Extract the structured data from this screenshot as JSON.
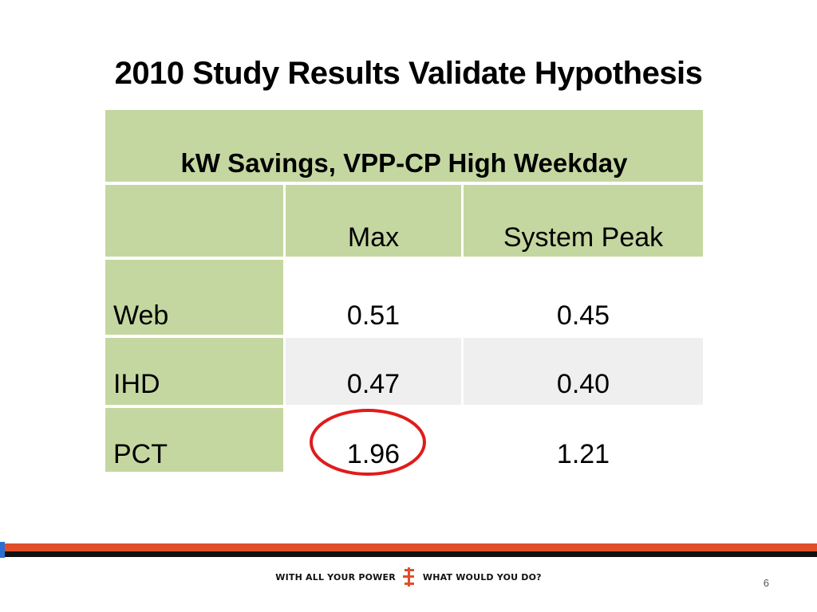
{
  "slide": {
    "title": "2010 Study Results Validate Hypothesis",
    "page_number": "6"
  },
  "table": {
    "title": "kW Savings, VPP-CP High Weekday",
    "columns": [
      "",
      "Max",
      "System Peak"
    ],
    "rows": [
      {
        "label": "Web",
        "max": "0.51",
        "system_peak": "0.45"
      },
      {
        "label": "IHD",
        "max": "0.47",
        "system_peak": "0.40"
      },
      {
        "label": "PCT",
        "max": "1.96",
        "system_peak": "1.21"
      }
    ],
    "highlighted_cell": "PCT / Max"
  },
  "footer": {
    "tagline_left": "WITH ALL YOUR POWER",
    "tagline_right": "WHAT WOULD YOU DO?",
    "logo": "e-logo-icon"
  },
  "colors": {
    "header_fill": "#c5d7a0",
    "alt_row_fill": "#efefef",
    "highlight_ring": "#e01b1b",
    "footer_orange": "#e04e2a",
    "footer_black": "#111111"
  }
}
